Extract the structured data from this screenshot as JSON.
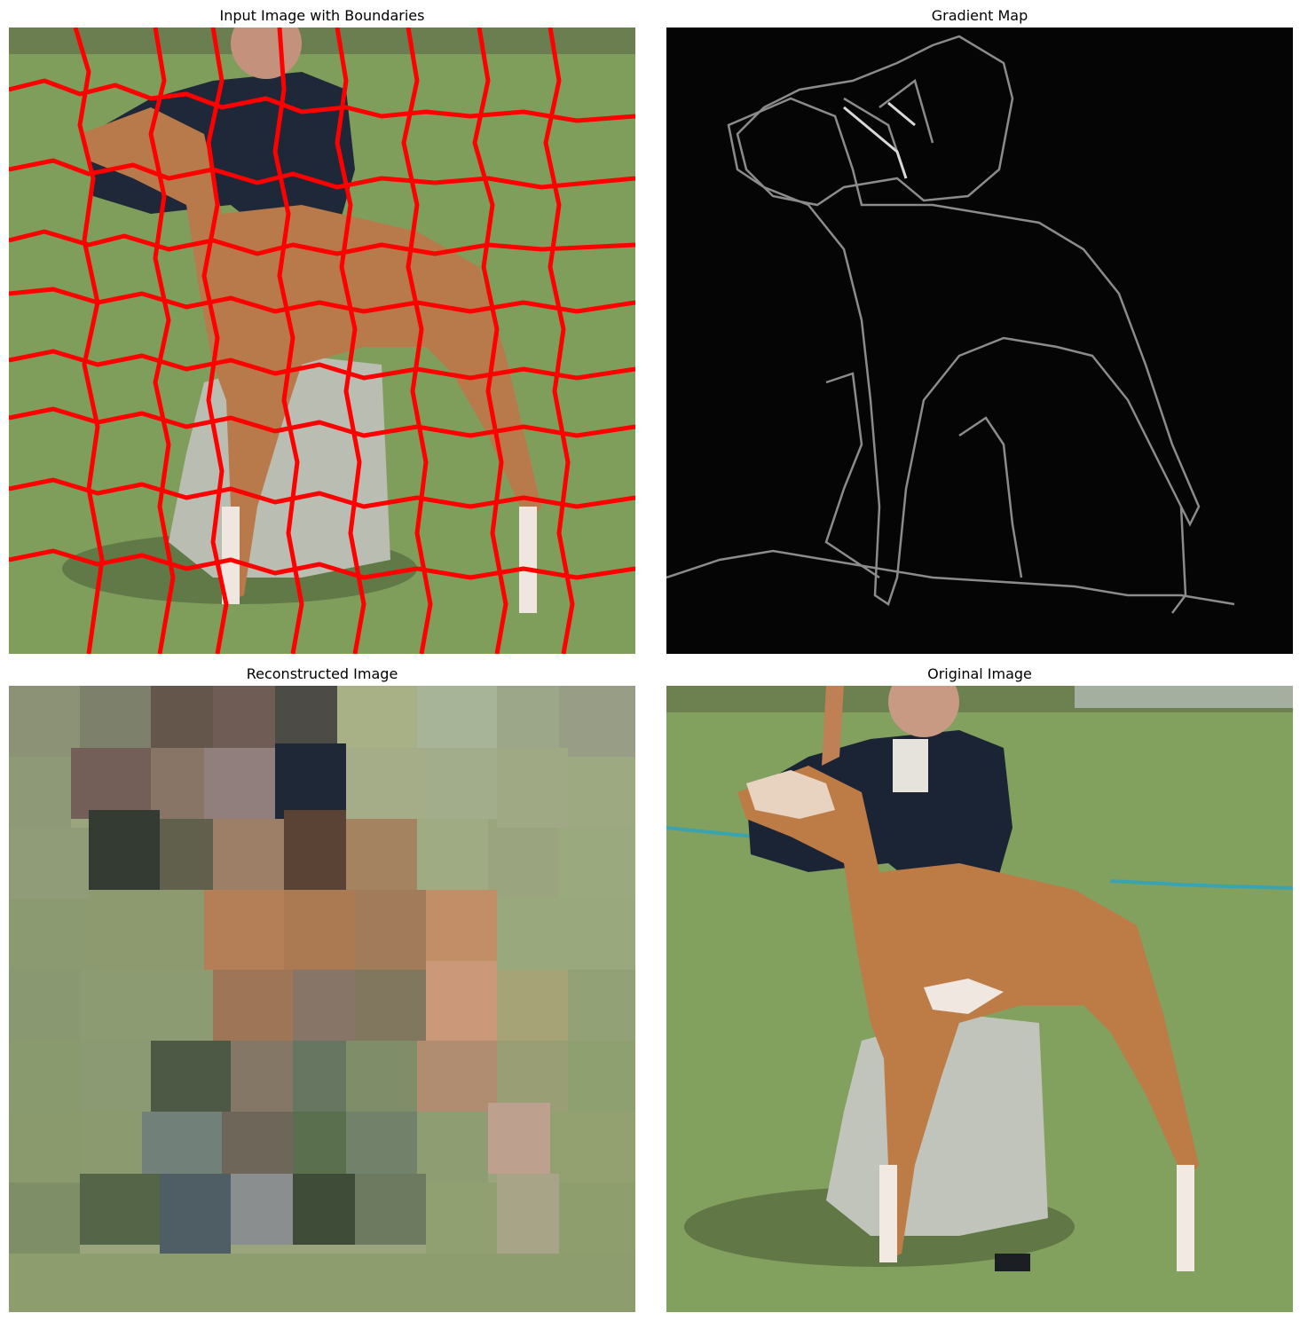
{
  "figure": {
    "panels": [
      {
        "title": "Input Image with Boundaries"
      },
      {
        "title": "Gradient Map"
      },
      {
        "title": "Reconstructed Image"
      },
      {
        "title": "Original Image"
      }
    ]
  }
}
